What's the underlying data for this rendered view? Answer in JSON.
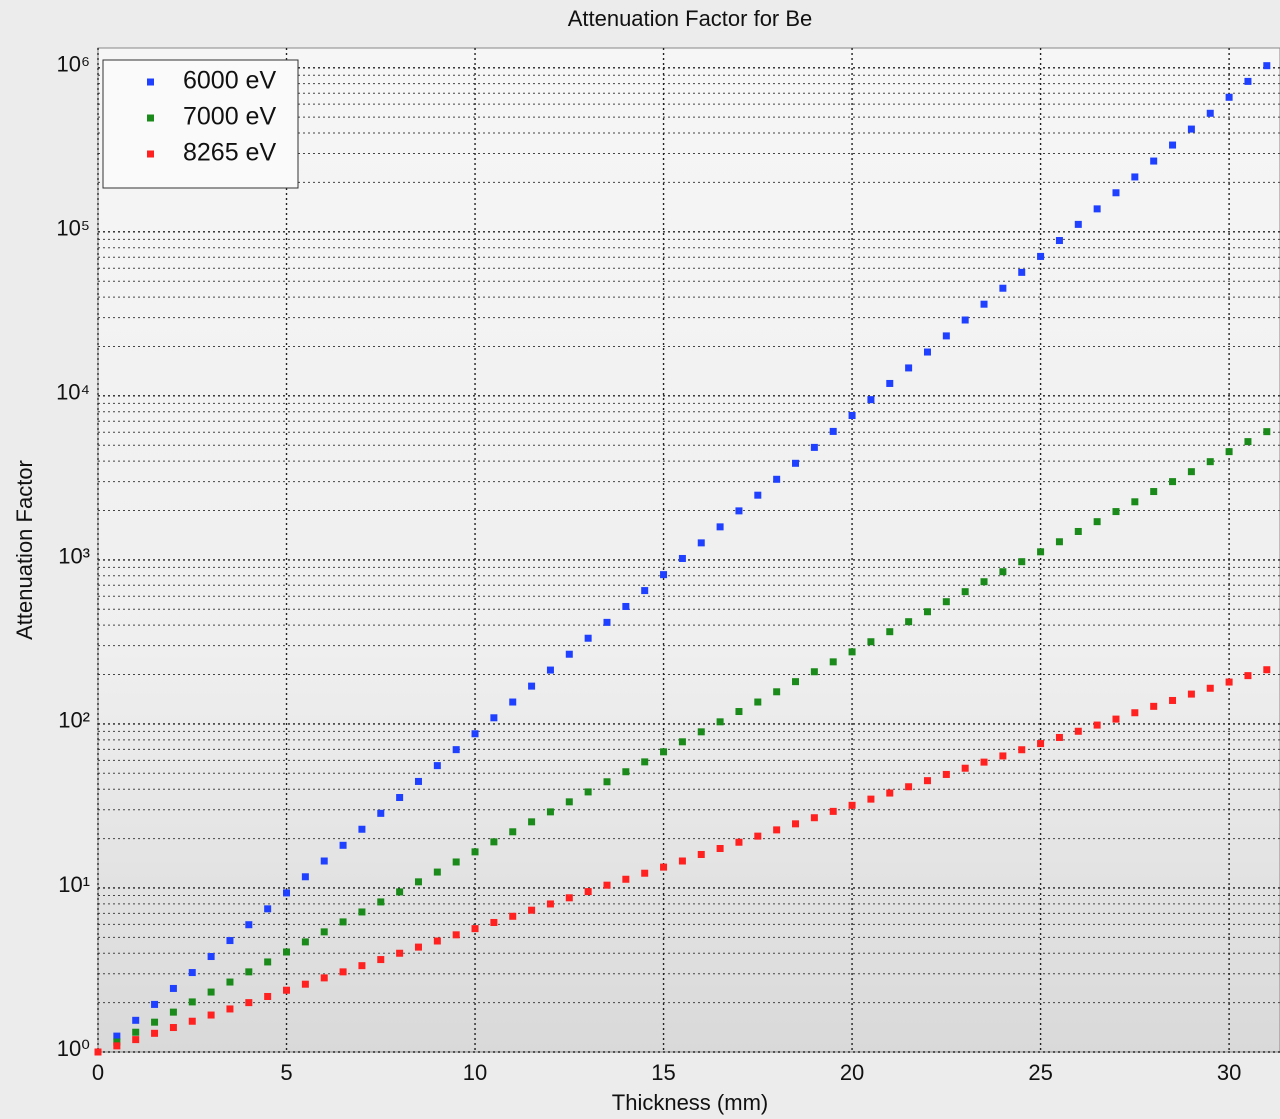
{
  "chart_data": {
    "type": "scatter",
    "title": "Attenuation Factor for Be",
    "x_label": "Thickness (mm)",
    "y_label": "Attenuation Factor",
    "x": [
      0,
      0.5,
      1,
      1.5,
      2,
      2.5,
      3,
      3.5,
      4,
      4.5,
      5,
      5.5,
      6,
      6.5,
      7,
      7.5,
      8,
      8.5,
      9,
      9.5,
      10,
      10.5,
      11,
      11.5,
      12,
      12.5,
      13,
      13.5,
      14,
      14.5,
      15,
      15.5,
      16,
      16.5,
      17,
      17.5,
      18,
      18.5,
      19,
      19.5,
      20,
      20.5,
      21,
      21.5,
      22,
      22.5,
      23,
      23.5,
      24,
      24.5,
      25,
      25.5,
      26,
      26.5,
      27,
      27.5,
      28,
      28.5,
      29,
      29.5,
      30,
      30.5,
      31
    ],
    "series": [
      {
        "name": "6000 eV",
        "color": "#2040ff",
        "values": [
          1,
          1.25,
          1.56,
          1.95,
          2.44,
          3.05,
          3.82,
          4.78,
          5.97,
          7.46,
          9.33,
          11.7,
          14.6,
          18.2,
          22.8,
          28.5,
          35.6,
          44.6,
          55.7,
          69.7,
          87.1,
          109,
          136,
          170,
          213,
          266,
          333,
          416,
          520,
          650,
          813,
          1020,
          1270,
          1590,
          1990,
          2480,
          3100,
          3880,
          4850,
          6070,
          7590,
          9480,
          11900,
          14800,
          18500,
          23200,
          29000,
          36200,
          45300,
          56600,
          70800,
          88500,
          111000,
          138000,
          173000,
          216000,
          270000,
          338000,
          423000,
          528000,
          661000,
          826000,
          1030000
        ]
      },
      {
        "name": "7000 eV",
        "color": "#1a8a1a",
        "values": [
          1,
          1.15,
          1.32,
          1.52,
          1.75,
          2.02,
          2.32,
          2.67,
          3.08,
          3.54,
          4.07,
          4.69,
          5.4,
          6.21,
          7.14,
          8.22,
          9.46,
          10.9,
          12.5,
          14.4,
          16.6,
          19.1,
          22,
          25.3,
          29.1,
          33.5,
          38.5,
          44.4,
          51.1,
          58.7,
          67.6,
          77.8,
          89.5,
          103,
          119,
          136,
          157,
          181,
          208,
          239,
          275,
          317,
          365,
          420,
          483,
          556,
          640,
          736,
          847,
          975,
          1120,
          1290,
          1490,
          1710,
          1970,
          2260,
          2610,
          3000,
          3450,
          3970,
          4570,
          5260,
          6050
        ]
      },
      {
        "name": "8265 eV",
        "color": "#ff2020",
        "values": [
          1,
          1.09,
          1.19,
          1.3,
          1.41,
          1.54,
          1.68,
          1.83,
          2,
          2.18,
          2.38,
          2.59,
          2.83,
          3.08,
          3.36,
          3.66,
          4,
          4.36,
          4.75,
          5.18,
          5.65,
          6.16,
          6.72,
          7.32,
          7.99,
          8.71,
          9.5,
          10.4,
          11.3,
          12.3,
          13.4,
          14.6,
          16,
          17.4,
          19,
          20.7,
          22.6,
          24.6,
          26.8,
          29.3,
          31.9,
          34.8,
          37.9,
          41.4,
          45.1,
          49.2,
          53.7,
          58.5,
          63.8,
          69.6,
          75.9,
          82.7,
          90.2,
          98.4,
          107,
          117,
          128,
          139,
          152,
          165,
          180,
          197,
          214
        ]
      }
    ],
    "xlim": [
      0,
      31.35
    ],
    "xticks": [
      0,
      5,
      10,
      15,
      20,
      25,
      30
    ],
    "ylim": [
      1,
      1320000
    ],
    "y_scale": "log",
    "yticks": [
      {
        "value": 1,
        "label": "10⁰"
      },
      {
        "value": 10,
        "label": "10¹"
      },
      {
        "value": 100,
        "label": "10²"
      },
      {
        "value": 1000,
        "label": "10³"
      },
      {
        "value": 10000,
        "label": "10⁴"
      },
      {
        "value": 100000,
        "label": "10⁵"
      },
      {
        "value": 1000000,
        "label": "10⁶"
      }
    ],
    "grid": true,
    "minor_grid": true,
    "legend": "upper left"
  }
}
